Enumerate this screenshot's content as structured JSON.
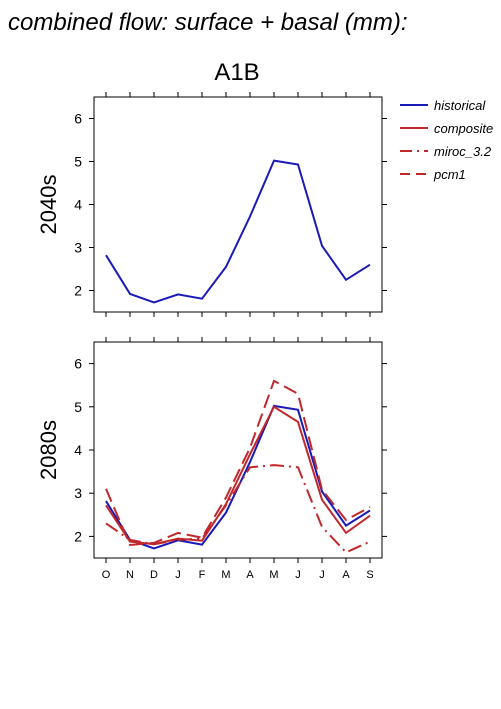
{
  "page": {
    "title": "combined flow: surface + basal (mm):",
    "scenario": "A1B"
  },
  "legend": {
    "entries": [
      {
        "name": "historical",
        "color": "#1a1ab8",
        "dash": "solid"
      },
      {
        "name": "composite",
        "color": "#c0282b",
        "dash": "solid"
      },
      {
        "name": "miroc_3.2",
        "color": "#c0282b",
        "dash": "dashdot"
      },
      {
        "name": "pcm1",
        "color": "#c0282b",
        "dash": "dashed"
      }
    ]
  },
  "chart_data": [
    {
      "type": "line",
      "panel_label": "2040s",
      "categories": [
        "O",
        "N",
        "D",
        "J",
        "F",
        "M",
        "A",
        "M",
        "J",
        "J",
        "A",
        "S"
      ],
      "ylim": [
        1.5,
        6.5
      ],
      "yticks": [
        2,
        3,
        4,
        5,
        6
      ],
      "series": [
        {
          "name": "historical",
          "values": [
            2.82,
            1.92,
            1.72,
            1.91,
            1.81,
            2.55,
            3.72,
            5.02,
            4.93,
            3.04,
            2.25,
            2.6
          ]
        }
      ]
    },
    {
      "type": "line",
      "panel_label": "2080s",
      "categories": [
        "O",
        "N",
        "D",
        "J",
        "F",
        "M",
        "A",
        "M",
        "J",
        "J",
        "A",
        "S"
      ],
      "ylim": [
        1.5,
        6.5
      ],
      "yticks": [
        2,
        3,
        4,
        5,
        6
      ],
      "series": [
        {
          "name": "historical",
          "values": [
            2.82,
            1.92,
            1.72,
            1.91,
            1.81,
            2.55,
            3.72,
            5.02,
            4.93,
            3.04,
            2.25,
            2.6
          ]
        },
        {
          "name": "composite",
          "values": [
            2.72,
            1.88,
            1.82,
            1.95,
            1.9,
            2.75,
            3.9,
            5.0,
            4.65,
            2.85,
            2.08,
            2.48
          ]
        },
        {
          "name": "miroc_3.2",
          "values": [
            2.3,
            1.92,
            1.82,
            1.92,
            1.95,
            2.72,
            3.6,
            3.65,
            3.6,
            2.22,
            1.63,
            1.88
          ]
        },
        {
          "name": "pcm1",
          "values": [
            3.1,
            1.8,
            1.85,
            2.08,
            1.97,
            2.9,
            4.05,
            5.6,
            5.3,
            3.08,
            2.38,
            2.68
          ]
        }
      ]
    }
  ]
}
